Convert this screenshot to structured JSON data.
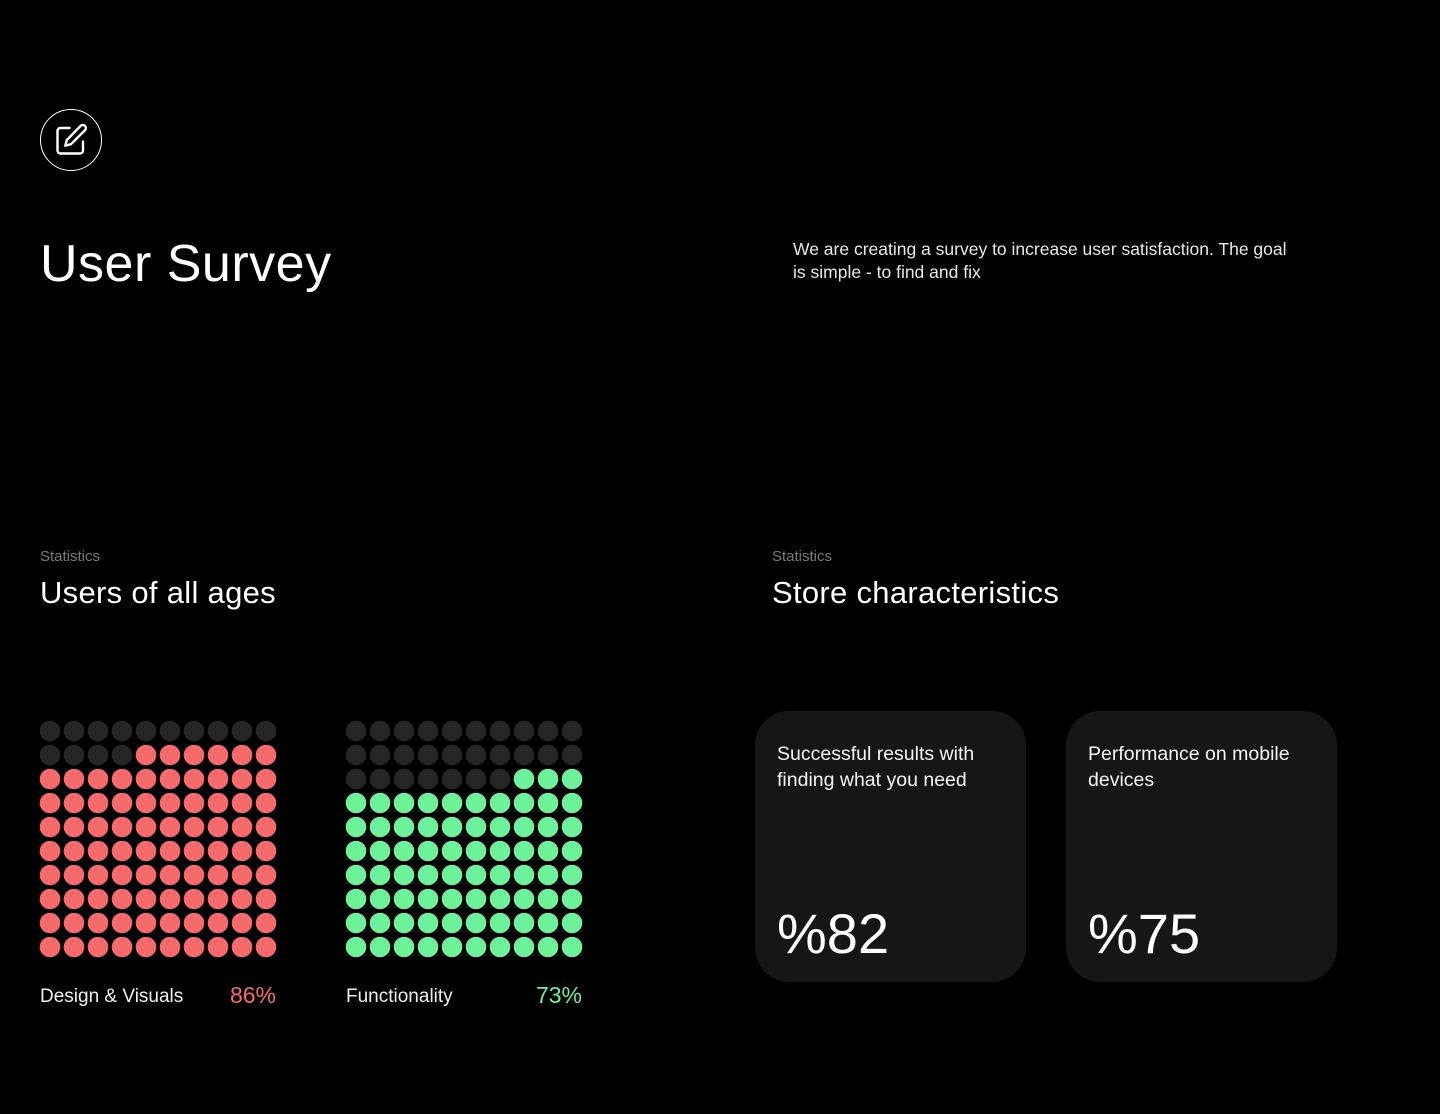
{
  "header": {
    "icon": "edit-icon",
    "title": "User Survey",
    "description": "We are creating a survey to increase user satisfaction. The goal is simple - to find and fix"
  },
  "sections": {
    "ages": {
      "label": "Statistics",
      "title": "Users of all ages"
    },
    "store": {
      "label": "Statistics",
      "title": "Store characteristics"
    }
  },
  "chart_data": [
    {
      "type": "waffle",
      "name": "Design & Visuals",
      "value_label": "86%",
      "value": 86,
      "total": 100,
      "grid": [
        10,
        10
      ],
      "color": "#f56a6a",
      "empty_color": "#262626"
    },
    {
      "type": "waffle",
      "name": "Functionality",
      "value_label": "73%",
      "value": 73,
      "total": 100,
      "grid": [
        10,
        10
      ],
      "color": "#6ff09a",
      "empty_color": "#262626"
    }
  ],
  "cards": [
    {
      "text": "Successful results with finding what you need",
      "value": "%82"
    },
    {
      "text": "Performance on mobile devices",
      "value": "%75"
    }
  ],
  "colors": {
    "background": "#000000",
    "card": "#161616",
    "muted": "#7a7a7a"
  }
}
